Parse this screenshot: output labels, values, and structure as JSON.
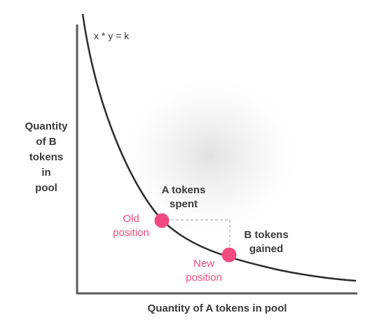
{
  "equation": "x * y = k",
  "y_axis_label": "Quantity\nof B\ntokens\nin\npool",
  "x_axis_label": "Quantity of A tokens in pool",
  "a_tokens_spent": "A tokens\nspent",
  "b_tokens_gained": "B tokens\ngained",
  "old_position": "Old\nposition",
  "new_position": "New\nposition",
  "colors": {
    "axis": "#5a5a5a",
    "curve": "#2a2a2a",
    "point": "#f04a7e",
    "text_dark": "#3a3a3a",
    "text_pink": "#ee4e7f",
    "dashed": "#b0b0b0"
  }
}
